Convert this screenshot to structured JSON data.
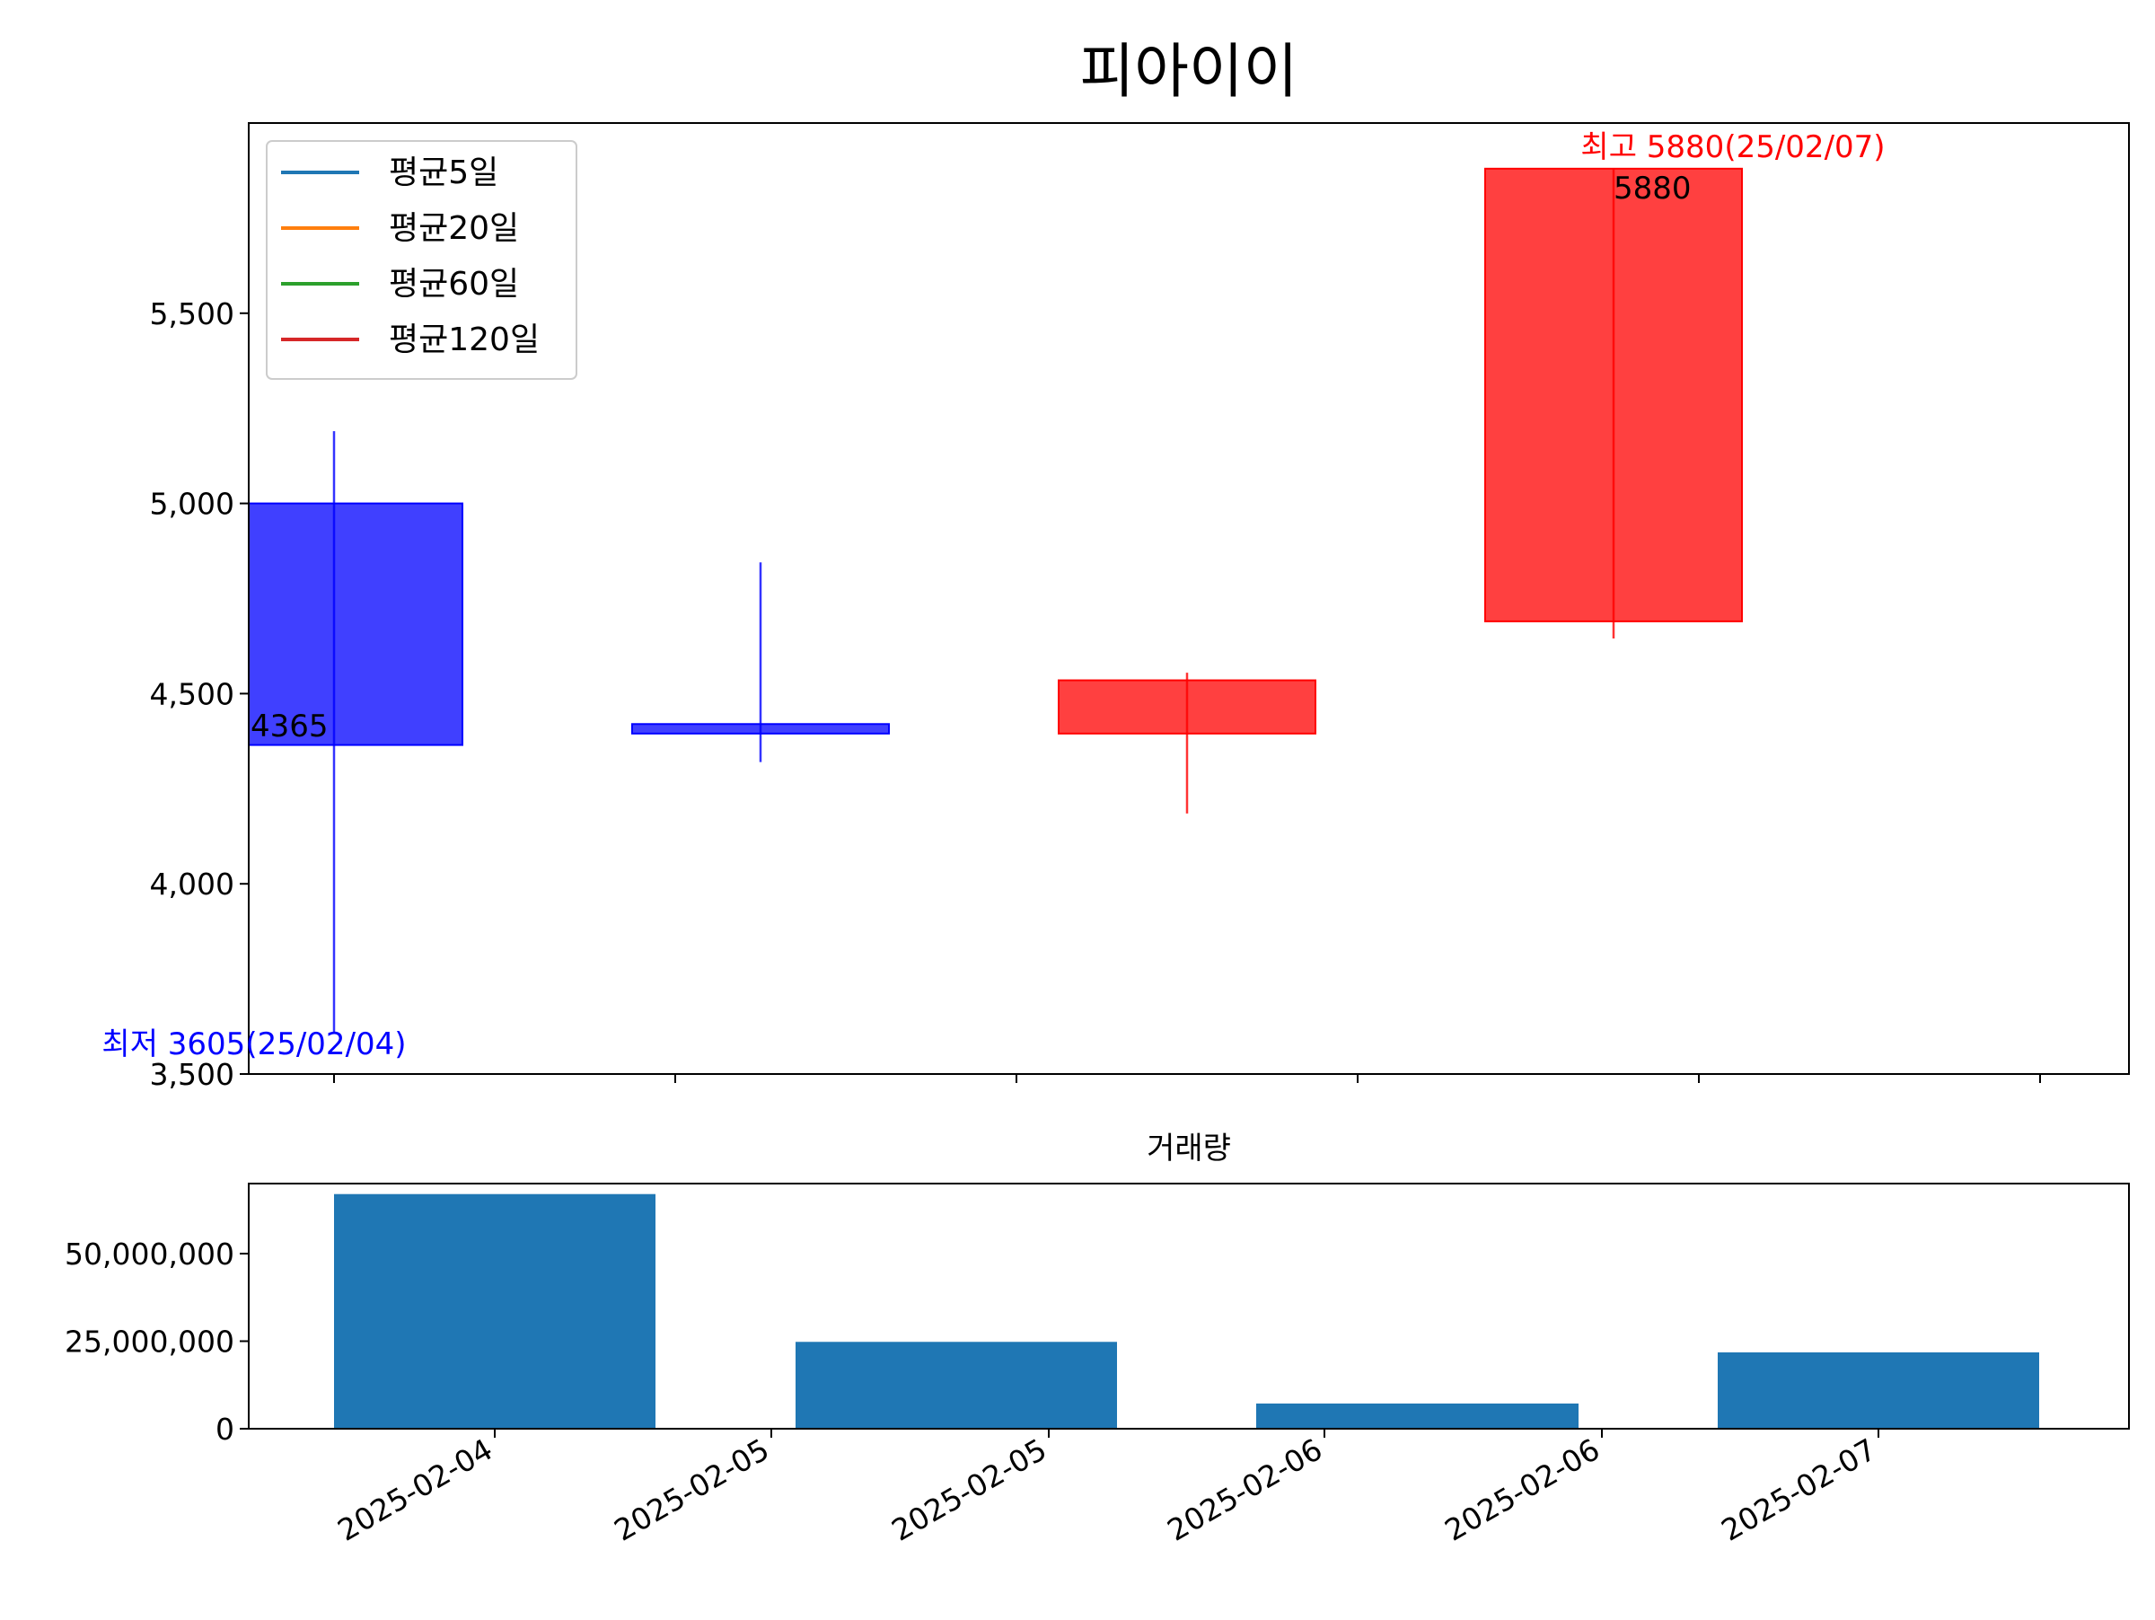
{
  "chart_data": [
    {
      "type": "candlestick",
      "title": "피아이이",
      "categories": [
        "2025-02-04",
        "2025-02-05",
        "2025-02-06",
        "2025-02-07"
      ],
      "ohlc": [
        {
          "date": "2025-02-04",
          "open": 5000,
          "high": 5190,
          "low": 3605,
          "close": 4365
        },
        {
          "date": "2025-02-05",
          "open": 4420,
          "high": 4845,
          "low": 4320,
          "close": 4395
        },
        {
          "date": "2025-02-06",
          "open": 4395,
          "high": 4555,
          "low": 4185,
          "close": 4535
        },
        {
          "date": "2025-02-07",
          "open": 4690,
          "high": 5880,
          "low": 4645,
          "close": 5880
        }
      ],
      "legend": {
        "placement": "top-left",
        "entries": [
          {
            "name": "평균5일",
            "color": "#1f77b4"
          },
          {
            "name": "평균20일",
            "color": "#ff7f0e"
          },
          {
            "name": "평균60일",
            "color": "#2ca02c"
          },
          {
            "name": "평균120일",
            "color": "#d62728"
          }
        ]
      },
      "yticks": [
        3500,
        4000,
        4500,
        5000,
        5500
      ],
      "ytick_labels": [
        "3,500",
        "4,000",
        "4,500",
        "5,000",
        "5,500"
      ],
      "ylim": [
        3500,
        6000
      ],
      "annotations": {
        "high": {
          "text": "최고 5880(25/02/07)",
          "value": 5880,
          "color": "#ff0000"
        },
        "low": {
          "text": "최저 3605(25/02/04)",
          "value": 3605,
          "color": "#0000ff"
        },
        "first_close": {
          "text": "4365",
          "value": 4365
        },
        "last_close": {
          "text": "5880",
          "value": 5880
        }
      },
      "up_color": "#ff0000",
      "down_color": "#0000ff",
      "grid": false
    },
    {
      "type": "bar",
      "title": "거래량",
      "x_labels": [
        "2025-02-04",
        "2025-02-05",
        "2025-02-05",
        "2025-02-06",
        "2025-02-06",
        "2025-02-07"
      ],
      "values": [
        67000000,
        24800000,
        7200000,
        21800000
      ],
      "yticks": [
        0,
        25000000,
        50000000
      ],
      "ytick_labels": [
        "0",
        "25,000,000",
        "50,000,000"
      ],
      "ylim": [
        0,
        70000000
      ],
      "bar_color": "#1f77b4",
      "grid": false
    }
  ]
}
